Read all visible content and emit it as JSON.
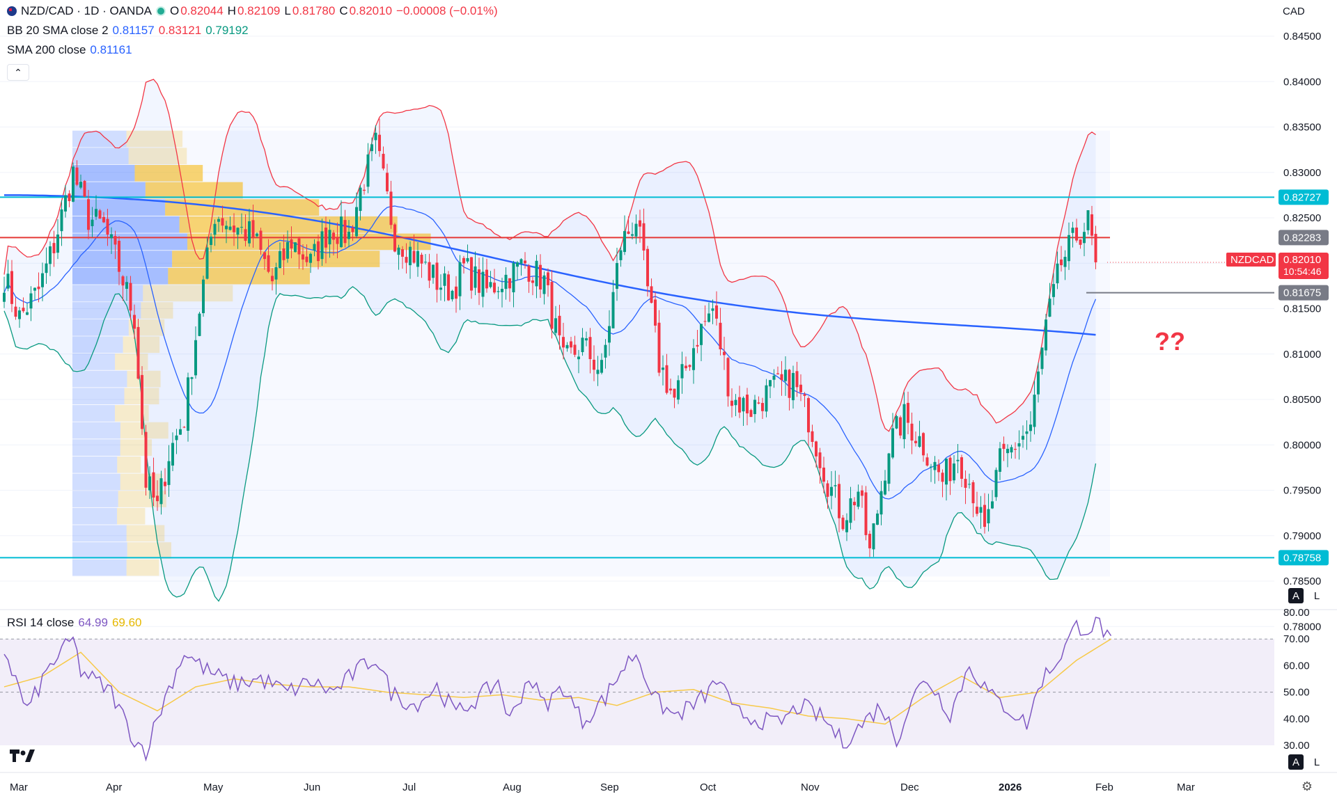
{
  "header": {
    "symbol": "NZD/CAD · 1D · OANDA",
    "ohlc": [
      {
        "k": "O",
        "v": "0.82044"
      },
      {
        "k": "H",
        "v": "0.82109"
      },
      {
        "k": "L",
        "v": "0.81780"
      },
      {
        "k": "C",
        "v": "0.82010"
      }
    ],
    "change": "−0.00008 (−0.01%)",
    "currency": "CAD"
  },
  "indicators": {
    "bb": {
      "label": "BB 20 SMA close 2",
      "values": [
        "0.81157",
        "0.83121",
        "0.79192"
      ],
      "colors": [
        "#2962ff",
        "#f23645",
        "#089981"
      ]
    },
    "sma": {
      "label": "SMA 200 close",
      "value": "0.81161",
      "color": "#2962ff"
    },
    "rsi": {
      "label": "RSI 14 close",
      "values": [
        "64.99",
        "69.60"
      ],
      "colors": [
        "#7e57c2",
        "#f7c948"
      ]
    }
  },
  "annotation": "??",
  "colors": {
    "up": "#089981",
    "down": "#f23645",
    "cyan": "#00bcd4",
    "sma": "#2962ff",
    "bbUpper": "#f23645",
    "bbLower": "#089981",
    "rsi": "#7e57c2",
    "rsiMa": "#f7c948"
  },
  "chart_data": {
    "type": "candlestick",
    "y_ticks": [
      "0.84500",
      "0.84000",
      "0.83500",
      "0.83000",
      "0.82500",
      "0.82000",
      "0.81500",
      "0.81000",
      "0.80500",
      "0.80000",
      "0.79500",
      "0.79000",
      "0.78500",
      "0.78000"
    ],
    "ylim": [
      0.7795,
      0.8472
    ],
    "x_ticks": [
      "Mar",
      "Apr",
      "May",
      "Jun",
      "Jul",
      "Aug",
      "Sep",
      "Oct",
      "Nov",
      "Dec",
      "2026",
      "Feb",
      "Mar"
    ],
    "price_labels": [
      {
        "text": "0.82727",
        "value": 0.82727,
        "bg": "#00bcd4"
      },
      {
        "text": "0.82283",
        "value": 0.82283,
        "bg": "#787b86"
      },
      {
        "text": "0.81675",
        "value": 0.81675,
        "bg": "#787b86"
      },
      {
        "text": "0.78758",
        "value": 0.78758,
        "bg": "#00bcd4"
      }
    ],
    "last_price": {
      "symbol": "NZDCAD",
      "price": "0.82010",
      "countdown": "10:54:46",
      "value": 0.8201
    },
    "horizontal_lines": [
      0.82727,
      0.82283,
      0.78758
    ],
    "close_anchors": [
      [
        0,
        0.8185
      ],
      [
        4,
        0.814
      ],
      [
        9,
        0.817
      ],
      [
        13,
        0.822
      ],
      [
        18,
        0.83
      ],
      [
        22,
        0.825
      ],
      [
        26,
        0.824
      ],
      [
        30,
        0.8195
      ],
      [
        34,
        0.814
      ],
      [
        37,
        0.796
      ],
      [
        40,
        0.793
      ],
      [
        43,
        0.799
      ],
      [
        47,
        0.803
      ],
      [
        51,
        0.815
      ],
      [
        55,
        0.8255
      ],
      [
        60,
        0.824
      ],
      [
        65,
        0.823
      ],
      [
        70,
        0.818
      ],
      [
        75,
        0.8225
      ],
      [
        80,
        0.82
      ],
      [
        85,
        0.824
      ],
      [
        90,
        0.823
      ],
      [
        93,
        0.828
      ],
      [
        97,
        0.833
      ],
      [
        102,
        0.823
      ],
      [
        107,
        0.821
      ],
      [
        113,
        0.818
      ],
      [
        117,
        0.817
      ],
      [
        120,
        0.8195
      ],
      [
        126,
        0.817
      ],
      [
        131,
        0.8185
      ],
      [
        136,
        0.82
      ],
      [
        141,
        0.818
      ],
      [
        146,
        0.809
      ],
      [
        151,
        0.811
      ],
      [
        156,
        0.808
      ],
      [
        161,
        0.822
      ],
      [
        165,
        0.825
      ],
      [
        171,
        0.809
      ],
      [
        175,
        0.805
      ],
      [
        181,
        0.812
      ],
      [
        185,
        0.815
      ],
      [
        190,
        0.805
      ],
      [
        195,
        0.804
      ],
      [
        200,
        0.806
      ],
      [
        206,
        0.807
      ],
      [
        210,
        0.803
      ],
      [
        215,
        0.796
      ],
      [
        219,
        0.792
      ],
      [
        223,
        0.795
      ],
      [
        226,
        0.788
      ],
      [
        231,
        0.8
      ],
      [
        235,
        0.803
      ],
      [
        240,
        0.8
      ],
      [
        245,
        0.796
      ],
      [
        249,
        0.799
      ],
      [
        253,
        0.795
      ],
      [
        256,
        0.79
      ],
      [
        260,
        0.798
      ],
      [
        264,
        0.8
      ],
      [
        268,
        0.802
      ],
      [
        272,
        0.813
      ],
      [
        276,
        0.82
      ],
      [
        280,
        0.823
      ],
      [
        283,
        0.8245
      ],
      [
        285,
        0.8201
      ]
    ],
    "rsi_ticks": [
      "80.00",
      "70.00",
      "60.00",
      "50.00",
      "40.00",
      "30.00"
    ],
    "rsi_range": [
      30,
      80
    ],
    "rsi_band": [
      30,
      70
    ],
    "rsi_anchors": [
      [
        0,
        66
      ],
      [
        6,
        43
      ],
      [
        12,
        60
      ],
      [
        18,
        70
      ],
      [
        20,
        58
      ],
      [
        28,
        50
      ],
      [
        34,
        32
      ],
      [
        37,
        28
      ],
      [
        42,
        48
      ],
      [
        47,
        65
      ],
      [
        53,
        58
      ],
      [
        60,
        53
      ],
      [
        67,
        55
      ],
      [
        74,
        50
      ],
      [
        80,
        54
      ],
      [
        86,
        50
      ],
      [
        92,
        58
      ],
      [
        97,
        63
      ],
      [
        101,
        50
      ],
      [
        107,
        45
      ],
      [
        113,
        52
      ],
      [
        118,
        42
      ],
      [
        124,
        48
      ],
      [
        129,
        54
      ],
      [
        132,
        39
      ],
      [
        137,
        56
      ],
      [
        141,
        45
      ],
      [
        146,
        52
      ],
      [
        151,
        39
      ],
      [
        157,
        48
      ],
      [
        161,
        58
      ],
      [
        165,
        65
      ],
      [
        170,
        47
      ],
      [
        175,
        41
      ],
      [
        181,
        46
      ],
      [
        187,
        55
      ],
      [
        190,
        43
      ],
      [
        196,
        40
      ],
      [
        202,
        38
      ],
      [
        208,
        45
      ],
      [
        214,
        40
      ],
      [
        219,
        31
      ],
      [
        224,
        38
      ],
      [
        229,
        45
      ],
      [
        233,
        32
      ],
      [
        237,
        48
      ],
      [
        241,
        55
      ],
      [
        247,
        42
      ],
      [
        252,
        60
      ],
      [
        258,
        48
      ],
      [
        262,
        44
      ],
      [
        267,
        38
      ],
      [
        271,
        55
      ],
      [
        275,
        62
      ],
      [
        280,
        75
      ],
      [
        283,
        74
      ],
      [
        286,
        76
      ],
      [
        289,
        68
      ]
    ],
    "rsi_ma_anchors": [
      [
        0,
        52
      ],
      [
        10,
        56
      ],
      [
        20,
        65
      ],
      [
        30,
        50
      ],
      [
        40,
        43
      ],
      [
        50,
        52
      ],
      [
        60,
        55
      ],
      [
        70,
        53
      ],
      [
        80,
        52
      ],
      [
        90,
        52
      ],
      [
        100,
        50
      ],
      [
        110,
        49
      ],
      [
        120,
        48
      ],
      [
        130,
        49
      ],
      [
        140,
        47
      ],
      [
        150,
        48
      ],
      [
        160,
        45
      ],
      [
        170,
        50
      ],
      [
        180,
        51
      ],
      [
        190,
        46
      ],
      [
        200,
        44
      ],
      [
        210,
        41
      ],
      [
        220,
        40
      ],
      [
        230,
        38
      ],
      [
        240,
        48
      ],
      [
        250,
        56
      ],
      [
        260,
        48
      ],
      [
        270,
        50
      ],
      [
        280,
        62
      ],
      [
        289,
        70
      ]
    ]
  }
}
